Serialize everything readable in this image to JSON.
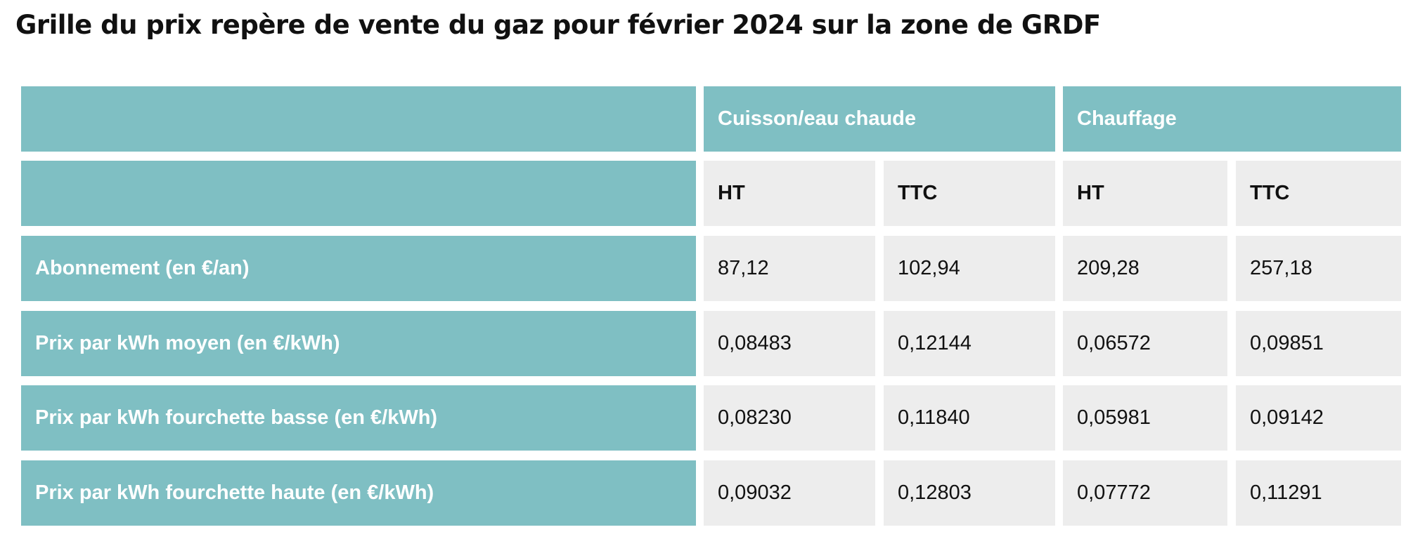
{
  "title": "Grille du prix repère de vente du gaz pour février 2024 sur la zone de GRDF",
  "colors": {
    "header_teal": "#7fbfc3",
    "cell_grey": "#ededed",
    "text_dark": "#111111",
    "text_light": "#ffffff"
  },
  "table": {
    "groups": [
      "Cuisson/eau chaude",
      "Chauffage"
    ],
    "subheaders": [
      "HT",
      "TTC",
      "HT",
      "TTC"
    ],
    "rows": [
      {
        "label": "Abonnement (en €/an)",
        "values": [
          "87,12",
          "102,94",
          "209,28",
          "257,18"
        ]
      },
      {
        "label": "Prix par kWh moyen (en €/kWh)",
        "values": [
          "0,08483",
          "0,12144",
          "0,06572",
          "0,09851"
        ]
      },
      {
        "label": "Prix par kWh fourchette basse (en €/kWh)",
        "values": [
          "0,08230",
          "0,11840",
          "0,05981",
          "0,09142"
        ]
      },
      {
        "label": "Prix par kWh fourchette haute (en €/kWh)",
        "values": [
          "0,09032",
          "0,12803",
          "0,07772",
          "0,11291"
        ]
      }
    ]
  }
}
